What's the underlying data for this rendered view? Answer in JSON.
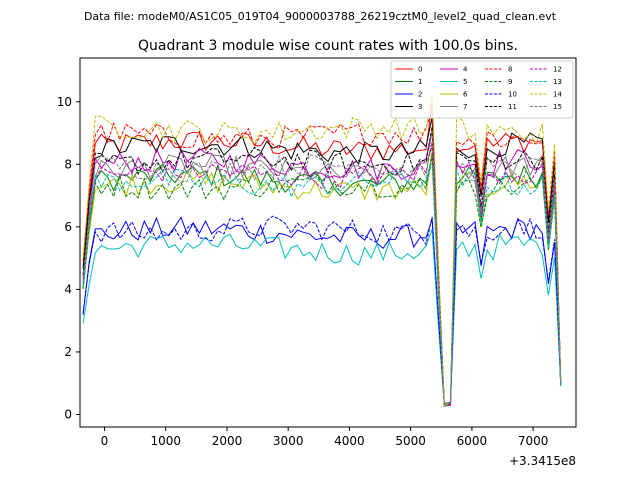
{
  "figure": {
    "suptitle": "Data file: modeM0/AS1C05_019T04_9000003788_26219cztM0_level2_quad_clean.evt"
  },
  "chart_data": {
    "type": "line",
    "title": "Quadrant 3 module wise count rates with 100.0s bins.",
    "xlabel": "",
    "ylabel": "",
    "x_offset_label": "+3.3415e8",
    "xlim": [
      -400,
      7700
    ],
    "ylim": [
      -0.4,
      11.4
    ],
    "xticks": [
      0,
      1000,
      2000,
      3000,
      4000,
      5000,
      6000,
      7000
    ],
    "yticks": [
      0,
      2,
      4,
      6,
      8,
      10
    ],
    "legend_position": "top-right",
    "x_start": -350,
    "x_step": 100,
    "x_count": 79,
    "series": [
      {
        "name": "0",
        "color": "#ff0000",
        "dash": false,
        "base": 8.6
      },
      {
        "name": "1",
        "color": "#008000",
        "dash": false,
        "base": 7.5
      },
      {
        "name": "2",
        "color": "#0000ff",
        "dash": false,
        "base": 5.8
      },
      {
        "name": "3",
        "color": "#000000",
        "dash": false,
        "base": 8.5
      },
      {
        "name": "4",
        "color": "#bf00bf",
        "dash": false,
        "base": 8.0
      },
      {
        "name": "5",
        "color": "#00bfbf",
        "dash": false,
        "base": 5.3
      },
      {
        "name": "6",
        "color": "#bfbf00",
        "dash": false,
        "base": 7.3
      },
      {
        "name": "7",
        "color": "#808080",
        "dash": false,
        "base": 7.8
      },
      {
        "name": "8",
        "color": "#ff0000",
        "dash": true,
        "base": 8.9
      },
      {
        "name": "9",
        "color": "#008000",
        "dash": true,
        "base": 7.3
      },
      {
        "name": "10",
        "color": "#0000ff",
        "dash": true,
        "base": 5.9
      },
      {
        "name": "11",
        "color": "#000000",
        "dash": true,
        "base": 8.1
      },
      {
        "name": "12",
        "color": "#bf00bf",
        "dash": true,
        "base": 7.7
      },
      {
        "name": "13",
        "color": "#00bfbf",
        "dash": true,
        "base": 7.4
      },
      {
        "name": "14",
        "color": "#bfbf00",
        "dash": true,
        "base": 9.1
      },
      {
        "name": "15",
        "color": "#808080",
        "dash": true,
        "base": 7.9
      }
    ]
  }
}
